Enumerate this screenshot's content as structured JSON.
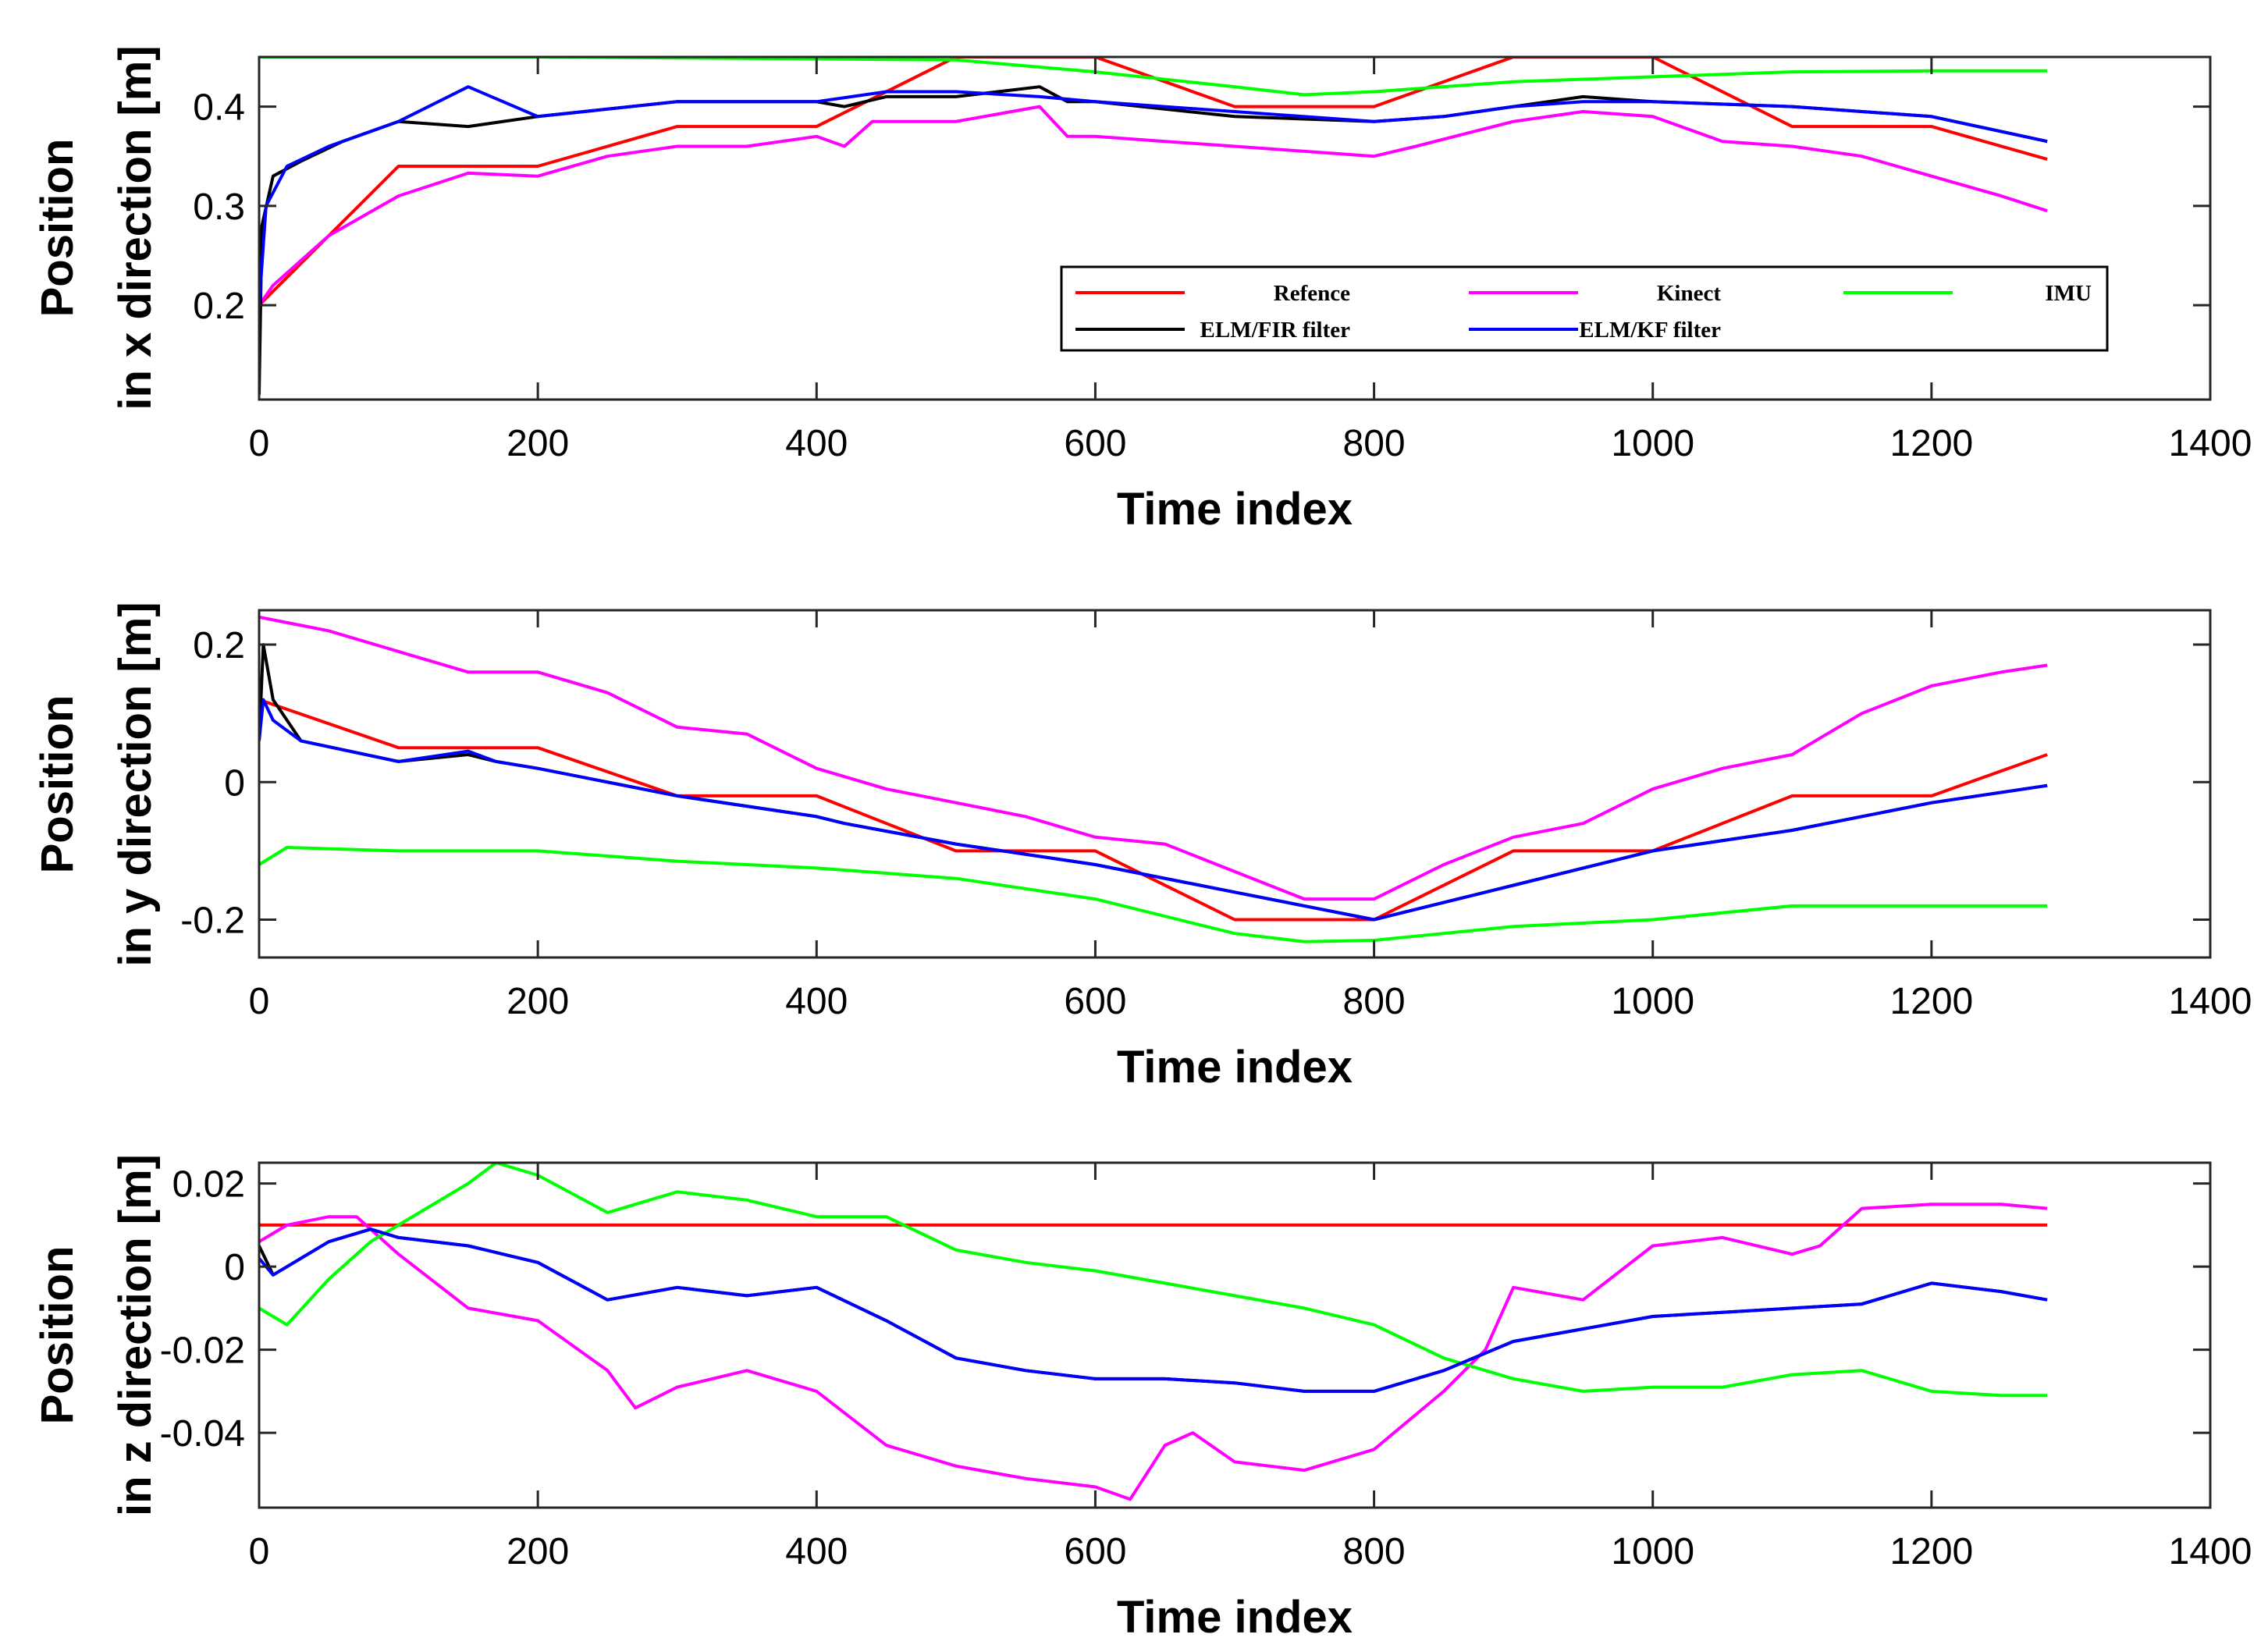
{
  "figure": {
    "colors": {
      "Refence": "#ff0000",
      "Kinect": "#ff00ff",
      "IMU": "#00ff00",
      "ELM/FIR filter": "#000000",
      "ELM/KF filter": "#0000ff"
    },
    "legend": {
      "entries": [
        "Refence",
        "Kinect",
        "IMU",
        "ELM/FIR filter",
        "ELM/KF filter"
      ],
      "location": "lower-right of top panel"
    }
  },
  "chart_data": [
    {
      "type": "line",
      "title": "",
      "xlabel": "Time index",
      "ylabel_line1": "Position",
      "ylabel_line2": "in x direction [m]",
      "xlim": [
        0,
        1400
      ],
      "ylim": [
        0.105,
        0.45
      ],
      "xticks": [
        0,
        200,
        400,
        600,
        800,
        1000,
        1200,
        1400
      ],
      "yticks": [
        0.2,
        0.3,
        0.4
      ],
      "ytick_labels": [
        "0.2",
        "0.3",
        "0.4"
      ],
      "series": [
        {
          "name": "Refence",
          "x": [
            0,
            100,
            200,
            300,
            400,
            500,
            600,
            700,
            800,
            900,
            1000,
            1100,
            1200,
            1283
          ],
          "y": [
            0.2,
            0.34,
            0.34,
            0.38,
            0.38,
            0.45,
            0.45,
            0.4,
            0.4,
            0.45,
            0.45,
            0.38,
            0.38,
            0.347
          ]
        },
        {
          "name": "Kinect",
          "x": [
            0,
            10,
            50,
            100,
            150,
            200,
            250,
            300,
            350,
            400,
            420,
            440,
            500,
            560,
            580,
            600,
            650,
            700,
            750,
            800,
            830,
            900,
            950,
            1000,
            1050,
            1100,
            1150,
            1200,
            1250,
            1283
          ],
          "y": [
            0.2,
            0.22,
            0.27,
            0.31,
            0.333,
            0.33,
            0.35,
            0.36,
            0.36,
            0.37,
            0.36,
            0.385,
            0.385,
            0.4,
            0.37,
            0.37,
            0.365,
            0.36,
            0.355,
            0.35,
            0.36,
            0.385,
            0.395,
            0.39,
            0.365,
            0.36,
            0.35,
            0.33,
            0.31,
            0.295
          ]
        },
        {
          "name": "IMU",
          "x": [
            0,
            200,
            400,
            500,
            600,
            700,
            750,
            800,
            900,
            1000,
            1100,
            1200,
            1283
          ],
          "y": [
            0.45,
            0.45,
            0.448,
            0.447,
            0.435,
            0.42,
            0.412,
            0.415,
            0.425,
            0.43,
            0.435,
            0.436,
            0.436
          ]
        },
        {
          "name": "ELM/FIR filter",
          "x": [
            0,
            2,
            10,
            30,
            60,
            100,
            150,
            200,
            300,
            400,
            420,
            450,
            500,
            560,
            580,
            600,
            700,
            800,
            850,
            900,
            950,
            1000,
            1100,
            1200,
            1283
          ],
          "y": [
            0.11,
            0.28,
            0.33,
            0.345,
            0.365,
            0.385,
            0.38,
            0.39,
            0.405,
            0.405,
            0.4,
            0.41,
            0.41,
            0.42,
            0.405,
            0.405,
            0.39,
            0.385,
            0.39,
            0.4,
            0.41,
            0.405,
            0.4,
            0.39,
            0.365
          ]
        },
        {
          "name": "ELM/KF filter",
          "x": [
            0,
            5,
            20,
            50,
            100,
            150,
            200,
            300,
            400,
            450,
            500,
            560,
            600,
            700,
            800,
            850,
            900,
            950,
            1000,
            1100,
            1200,
            1283
          ],
          "y": [
            0.2,
            0.3,
            0.34,
            0.36,
            0.385,
            0.42,
            0.39,
            0.405,
            0.405,
            0.415,
            0.415,
            0.41,
            0.405,
            0.395,
            0.385,
            0.39,
            0.4,
            0.405,
            0.405,
            0.4,
            0.39,
            0.365
          ]
        }
      ]
    },
    {
      "type": "line",
      "title": "",
      "xlabel": "Time index",
      "ylabel_line1": "Position",
      "ylabel_line2": "in y direction [m]",
      "xlim": [
        0,
        1400
      ],
      "ylim": [
        -0.255,
        0.25
      ],
      "xticks": [
        0,
        200,
        400,
        600,
        800,
        1000,
        1200,
        1400
      ],
      "yticks": [
        -0.2,
        0,
        0.2
      ],
      "ytick_labels": [
        "-0.2",
        "0",
        "0.2"
      ],
      "series": [
        {
          "name": "Refence",
          "x": [
            0,
            100,
            200,
            300,
            400,
            500,
            600,
            700,
            800,
            900,
            1000,
            1100,
            1200,
            1283
          ],
          "y": [
            0.12,
            0.05,
            0.05,
            -0.02,
            -0.02,
            -0.1,
            -0.1,
            -0.2,
            -0.2,
            -0.1,
            -0.1,
            -0.02,
            -0.02,
            0.04
          ]
        },
        {
          "name": "Kinect",
          "x": [
            0,
            50,
            100,
            150,
            200,
            250,
            300,
            350,
            400,
            450,
            500,
            550,
            600,
            650,
            700,
            750,
            800,
            850,
            900,
            950,
            1000,
            1050,
            1100,
            1150,
            1200,
            1250,
            1283
          ],
          "y": [
            0.24,
            0.22,
            0.19,
            0.16,
            0.16,
            0.13,
            0.08,
            0.07,
            0.02,
            -0.01,
            -0.03,
            -0.05,
            -0.08,
            -0.09,
            -0.13,
            -0.17,
            -0.17,
            -0.12,
            -0.08,
            -0.06,
            -0.01,
            0.02,
            0.04,
            0.1,
            0.14,
            0.16,
            0.17
          ]
        },
        {
          "name": "IMU",
          "x": [
            0,
            20,
            100,
            200,
            300,
            400,
            500,
            600,
            700,
            750,
            800,
            900,
            1000,
            1100,
            1200,
            1283
          ],
          "y": [
            -0.12,
            -0.095,
            -0.1,
            -0.1,
            -0.115,
            -0.125,
            -0.14,
            -0.17,
            -0.22,
            -0.232,
            -0.23,
            -0.21,
            -0.2,
            -0.18,
            -0.18,
            -0.18
          ]
        },
        {
          "name": "ELM/FIR filter",
          "x": [
            0,
            3,
            10,
            30,
            100,
            150,
            170,
            200,
            300,
            400,
            420,
            500,
            600,
            700,
            750,
            800,
            900,
            1000,
            1100,
            1200,
            1283
          ],
          "y": [
            0.06,
            0.2,
            0.12,
            0.06,
            0.03,
            0.04,
            0.03,
            0.02,
            -0.02,
            -0.05,
            -0.06,
            -0.09,
            -0.12,
            -0.16,
            -0.18,
            -0.2,
            -0.15,
            -0.1,
            -0.07,
            -0.03,
            -0.005
          ]
        },
        {
          "name": "ELM/KF filter",
          "x": [
            0,
            3,
            10,
            30,
            100,
            150,
            170,
            200,
            300,
            400,
            420,
            500,
            600,
            700,
            750,
            800,
            900,
            1000,
            1100,
            1200,
            1283
          ],
          "y": [
            0.06,
            0.12,
            0.09,
            0.06,
            0.03,
            0.045,
            0.03,
            0.02,
            -0.02,
            -0.05,
            -0.06,
            -0.09,
            -0.12,
            -0.16,
            -0.18,
            -0.2,
            -0.15,
            -0.1,
            -0.07,
            -0.03,
            -0.005
          ]
        }
      ]
    },
    {
      "type": "line",
      "title": "",
      "xlabel": "Time index",
      "ylabel_line1": "Position",
      "ylabel_line2": "in z direction [m]",
      "xlim": [
        0,
        1400
      ],
      "ylim": [
        -0.058,
        0.025
      ],
      "xticks": [
        0,
        200,
        400,
        600,
        800,
        1000,
        1200,
        1400
      ],
      "yticks": [
        -0.04,
        -0.02,
        0,
        0.02
      ],
      "ytick_labels": [
        "-0.04",
        "-0.02",
        "0",
        "0.02"
      ],
      "series": [
        {
          "name": "Refence",
          "x": [
            0,
            1283
          ],
          "y": [
            0.01,
            0.01
          ]
        },
        {
          "name": "Kinect",
          "x": [
            0,
            20,
            50,
            70,
            100,
            150,
            200,
            250,
            270,
            300,
            350,
            400,
            450,
            500,
            550,
            600,
            625,
            650,
            670,
            700,
            750,
            800,
            850,
            880,
            900,
            950,
            1000,
            1050,
            1100,
            1120,
            1150,
            1200,
            1250,
            1283
          ],
          "y": [
            0.006,
            0.01,
            0.012,
            0.012,
            0.003,
            -0.01,
            -0.013,
            -0.025,
            -0.034,
            -0.029,
            -0.025,
            -0.03,
            -0.043,
            -0.048,
            -0.051,
            -0.053,
            -0.056,
            -0.043,
            -0.04,
            -0.047,
            -0.049,
            -0.044,
            -0.03,
            -0.02,
            -0.005,
            -0.008,
            0.005,
            0.007,
            0.003,
            0.005,
            0.014,
            0.015,
            0.015,
            0.014
          ]
        },
        {
          "name": "IMU",
          "x": [
            0,
            20,
            50,
            80,
            100,
            150,
            170,
            200,
            250,
            300,
            350,
            400,
            450,
            500,
            550,
            600,
            650,
            700,
            750,
            800,
            850,
            900,
            950,
            1000,
            1050,
            1100,
            1150,
            1200,
            1250,
            1283
          ],
          "y": [
            -0.01,
            -0.014,
            -0.003,
            0.006,
            0.01,
            0.02,
            0.025,
            0.022,
            0.013,
            0.018,
            0.016,
            0.012,
            0.012,
            0.004,
            0.001,
            -0.001,
            -0.004,
            -0.007,
            -0.01,
            -0.014,
            -0.022,
            -0.027,
            -0.03,
            -0.029,
            -0.029,
            -0.026,
            -0.025,
            -0.03,
            -0.031,
            -0.031
          ]
        },
        {
          "name": "ELM/FIR filter",
          "x": [
            0,
            10,
            50,
            80,
            100,
            150,
            200,
            250,
            300,
            350,
            400,
            450,
            500,
            550,
            600,
            650,
            700,
            750,
            800,
            850,
            900,
            950,
            1000,
            1050,
            1100,
            1150,
            1200,
            1250,
            1283
          ],
          "y": [
            0.005,
            -0.002,
            0.006,
            0.009,
            0.007,
            0.005,
            0.001,
            -0.008,
            -0.005,
            -0.007,
            -0.005,
            -0.013,
            -0.022,
            -0.025,
            -0.027,
            -0.027,
            -0.028,
            -0.03,
            -0.03,
            -0.025,
            -0.018,
            -0.015,
            -0.012,
            -0.011,
            -0.01,
            -0.009,
            -0.004,
            -0.006,
            -0.008
          ]
        },
        {
          "name": "ELM/KF filter",
          "x": [
            0,
            10,
            50,
            80,
            100,
            150,
            200,
            250,
            300,
            350,
            400,
            450,
            500,
            550,
            600,
            650,
            700,
            750,
            800,
            850,
            900,
            950,
            1000,
            1050,
            1100,
            1150,
            1200,
            1250,
            1283
          ],
          "y": [
            0.002,
            -0.002,
            0.006,
            0.009,
            0.007,
            0.005,
            0.001,
            -0.008,
            -0.005,
            -0.007,
            -0.005,
            -0.013,
            -0.022,
            -0.025,
            -0.027,
            -0.027,
            -0.028,
            -0.03,
            -0.03,
            -0.025,
            -0.018,
            -0.015,
            -0.012,
            -0.011,
            -0.01,
            -0.009,
            -0.004,
            -0.006,
            -0.008
          ]
        }
      ]
    }
  ]
}
